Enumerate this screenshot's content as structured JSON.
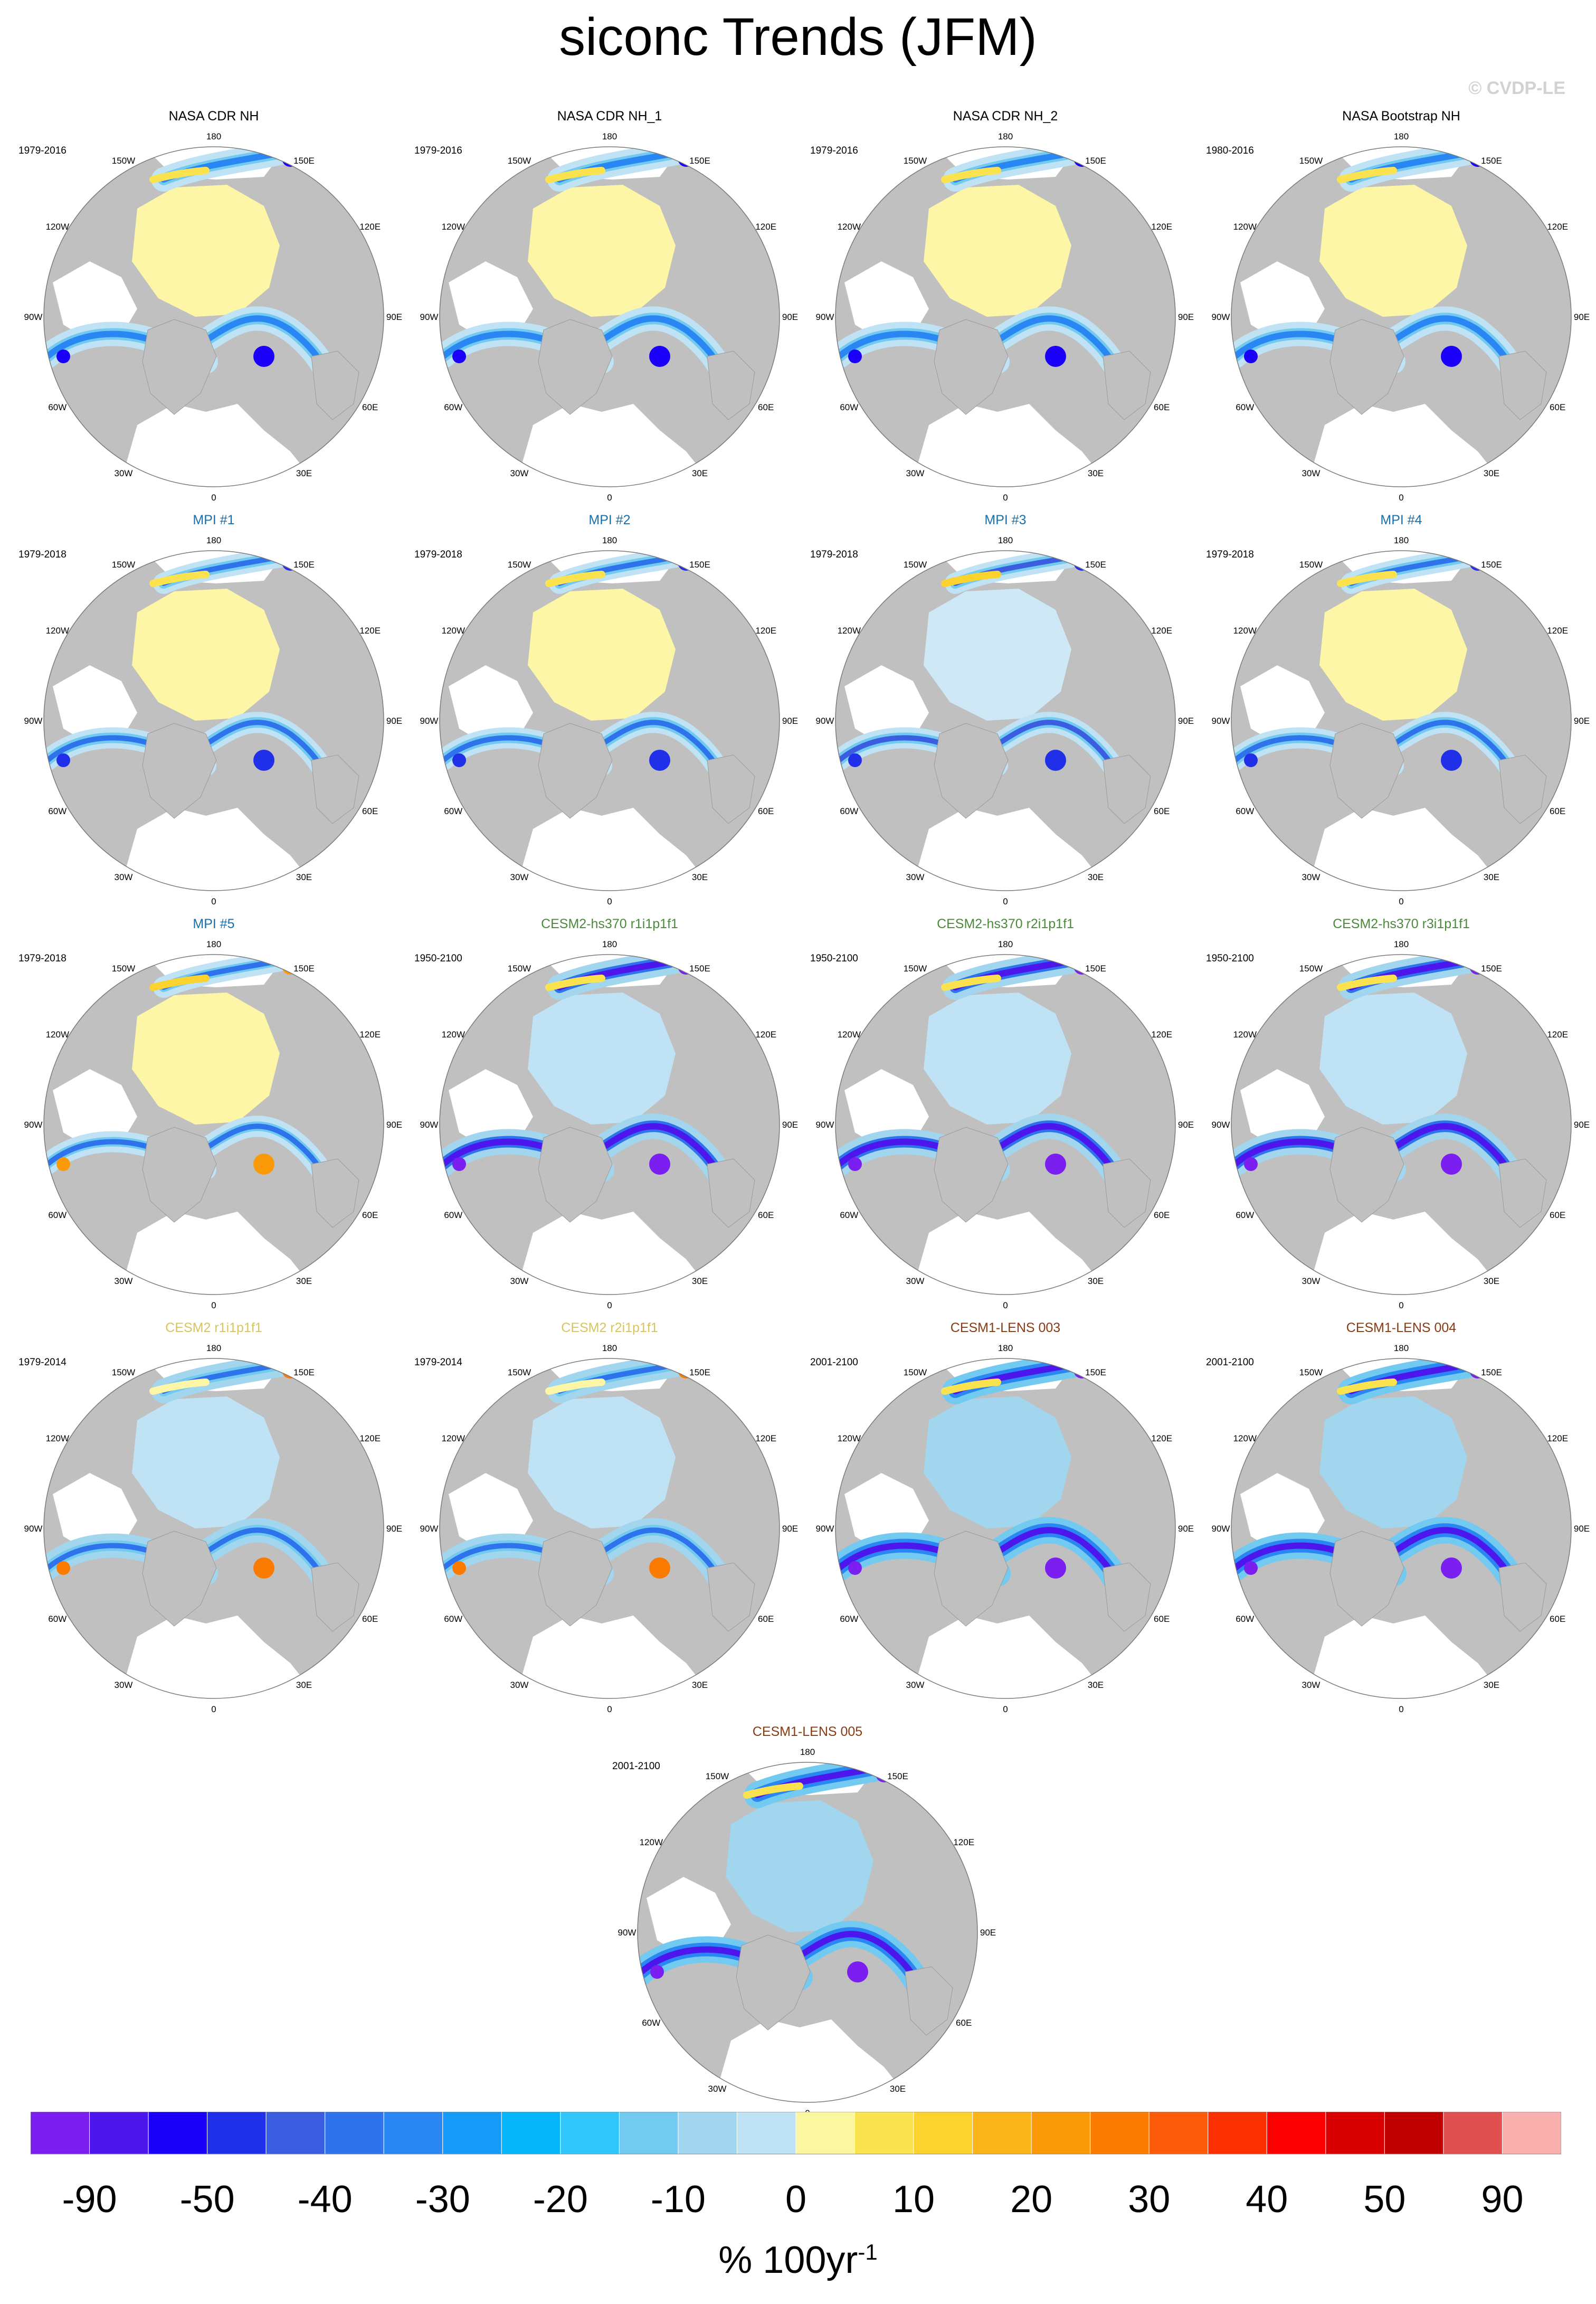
{
  "title": "siconc Trends (JFM)",
  "copyright": "© CVDP-LE",
  "longitude_labels": [
    "180",
    "150E",
    "120E",
    "90E",
    "60E",
    "30E",
    "0",
    "30W",
    "60W",
    "90W",
    "120W",
    "150W"
  ],
  "title_colors": {
    "obs": "#000000",
    "mpi": "#1a6faa",
    "cesm2hs": "#4a8a3a",
    "cesm2": "#d8c460",
    "cesm1": "#8a3a10"
  },
  "panels": [
    {
      "title": "NASA CDR NH",
      "period": "1979-2016",
      "group": "obs",
      "style": "obs"
    },
    {
      "title": "NASA CDR NH_1",
      "period": "1979-2016",
      "group": "obs",
      "style": "obs"
    },
    {
      "title": "NASA CDR NH_2",
      "period": "1979-2016",
      "group": "obs",
      "style": "obs"
    },
    {
      "title": "NASA Bootstrap NH",
      "period": "1980-2016",
      "group": "obs",
      "style": "obs"
    },
    {
      "title": "MPI #1",
      "period": "1979-2018",
      "group": "mpi",
      "style": "mpi"
    },
    {
      "title": "MPI #2",
      "period": "1979-2018",
      "group": "mpi",
      "style": "mpi"
    },
    {
      "title": "MPI #3",
      "period": "1979-2018",
      "group": "mpi",
      "style": "mpi3"
    },
    {
      "title": "MPI #4",
      "period": "1979-2018",
      "group": "mpi",
      "style": "mpi"
    },
    {
      "title": "MPI #5",
      "period": "1979-2018",
      "group": "mpi",
      "style": "mpi5"
    },
    {
      "title": "CESM2-hs370 r1i1p1f1",
      "period": "1950-2100",
      "group": "cesm2hs",
      "style": "hs"
    },
    {
      "title": "CESM2-hs370 r2i1p1f1",
      "period": "1950-2100",
      "group": "cesm2hs",
      "style": "hs"
    },
    {
      "title": "CESM2-hs370 r3i1p1f1",
      "period": "1950-2100",
      "group": "cesm2hs",
      "style": "hs"
    },
    {
      "title": "CESM2 r1i1p1f1",
      "period": "1979-2014",
      "group": "cesm2",
      "style": "cesm2"
    },
    {
      "title": "CESM2 r2i1p1f1",
      "period": "1979-2014",
      "group": "cesm2",
      "style": "cesm2"
    },
    {
      "title": "CESM1-LENS 003",
      "period": "2001-2100",
      "group": "cesm1",
      "style": "lens"
    },
    {
      "title": "CESM1-LENS 004",
      "period": "2001-2100",
      "group": "cesm1",
      "style": "lens"
    },
    {
      "title": "CESM1-LENS 005",
      "period": "2001-2100",
      "group": "cesm1",
      "style": "lens"
    }
  ],
  "colorbar": {
    "units": "% 100yr",
    "units_exponent": "-1",
    "labels": [
      "-90",
      "-50",
      "-40",
      "-30",
      "-20",
      "-10",
      "0",
      "10",
      "20",
      "30",
      "40",
      "50",
      "90"
    ],
    "colors": [
      "#7a1ff0",
      "#4c16ec",
      "#1a00f8",
      "#2030e8",
      "#3b5ee0",
      "#2e72ec",
      "#2a86f2",
      "#169cf8",
      "#06b6fa",
      "#30c6fa",
      "#72caf0",
      "#a2d6ee",
      "#bfe2f4",
      "#fbf6a0",
      "#fbe350",
      "#fbd22e",
      "#fbb518",
      "#fb9a08",
      "#fb7a00",
      "#fb5a08",
      "#fb3000",
      "#fb0000",
      "#d80000",
      "#bf0000",
      "#e05050",
      "#fbb0b0"
    ]
  }
}
